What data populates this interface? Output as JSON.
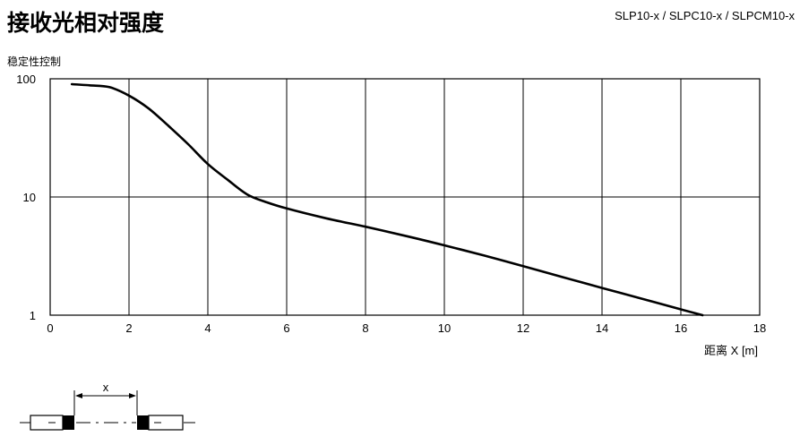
{
  "header": {
    "title": "接收光相对强度",
    "models": "SLP10-x / SLPC10-x  / SLPCM10-x"
  },
  "chart_data": {
    "type": "line",
    "ylabel": "稳定性控制",
    "xlabel": "距离 X [m]",
    "xlim": [
      0,
      18
    ],
    "ylim": [
      1,
      100
    ],
    "yscale": "log",
    "grid": true,
    "x_ticks": [
      0,
      2,
      4,
      6,
      8,
      10,
      12,
      14,
      16,
      18
    ],
    "y_ticks": [
      1,
      10,
      100
    ],
    "series": [
      {
        "x": [
          0.55,
          1.0,
          1.5,
          2.0,
          2.5,
          3.0,
          3.5,
          4.0,
          4.5,
          5.0,
          5.5,
          6.0,
          7.0,
          8.0,
          9.0,
          10.0,
          11.0,
          12.0,
          13.0,
          14.0,
          15.0,
          16.0,
          16.55
        ],
        "y": [
          90,
          88,
          85,
          72,
          56,
          40,
          28,
          19,
          14,
          10.5,
          9.0,
          8.0,
          6.6,
          5.6,
          4.7,
          3.9,
          3.2,
          2.6,
          2.1,
          1.7,
          1.38,
          1.12,
          1.0
        ]
      }
    ]
  },
  "diagram": {
    "distance_label": "x"
  }
}
